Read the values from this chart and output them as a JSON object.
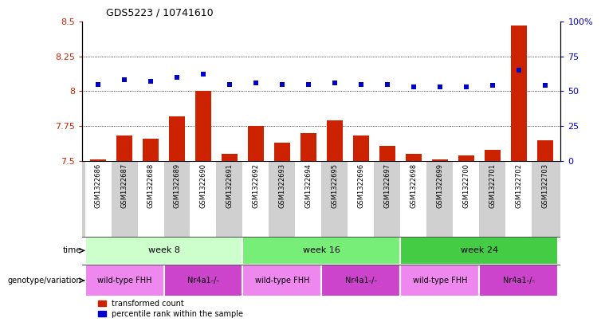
{
  "title": "GDS5223 / 10741610",
  "samples": [
    "GSM1322686",
    "GSM1322687",
    "GSM1322688",
    "GSM1322689",
    "GSM1322690",
    "GSM1322691",
    "GSM1322692",
    "GSM1322693",
    "GSM1322694",
    "GSM1322695",
    "GSM1322696",
    "GSM1322697",
    "GSM1322698",
    "GSM1322699",
    "GSM1322700",
    "GSM1322701",
    "GSM1322702",
    "GSM1322703"
  ],
  "red_values": [
    7.51,
    7.68,
    7.66,
    7.82,
    8.0,
    7.55,
    7.75,
    7.63,
    7.7,
    7.79,
    7.68,
    7.61,
    7.55,
    7.51,
    7.54,
    7.58,
    8.47,
    7.65
  ],
  "blue_values": [
    55,
    58,
    57,
    60,
    62,
    55,
    56,
    55,
    55,
    56,
    55,
    55,
    53,
    53,
    53,
    54,
    65,
    54
  ],
  "ylim_left": [
    7.5,
    8.5
  ],
  "ylim_right": [
    0,
    100
  ],
  "yticks_left": [
    7.5,
    7.75,
    8.0,
    8.25,
    8.5
  ],
  "ytick_labels_left": [
    "7.5",
    "7.75",
    "8",
    "8.25",
    "8.5"
  ],
  "ytick_labels_right": [
    "0",
    "25",
    "50",
    "75",
    "100%"
  ],
  "bar_color": "#cc2200",
  "dot_color": "#0000cc",
  "sample_bg_color": "#d0d0d0",
  "time_groups": [
    {
      "label": "week 8",
      "start": 0,
      "end": 5,
      "color": "#ccffcc"
    },
    {
      "label": "week 16",
      "start": 6,
      "end": 11,
      "color": "#77ee77"
    },
    {
      "label": "week 24",
      "start": 12,
      "end": 17,
      "color": "#44cc44"
    }
  ],
  "genotype_groups": [
    {
      "label": "wild-type FHH",
      "start": 0,
      "end": 2,
      "color": "#ee88ee"
    },
    {
      "label": "Nr4a1-/-",
      "start": 3,
      "end": 5,
      "color": "#cc44cc"
    },
    {
      "label": "wild-type FHH",
      "start": 6,
      "end": 8,
      "color": "#ee88ee"
    },
    {
      "label": "Nr4a1-/-",
      "start": 9,
      "end": 11,
      "color": "#cc44cc"
    },
    {
      "label": "wild-type FHH",
      "start": 12,
      "end": 14,
      "color": "#ee88ee"
    },
    {
      "label": "Nr4a1-/-",
      "start": 15,
      "end": 17,
      "color": "#cc44cc"
    }
  ],
  "legend_labels": [
    "transformed count",
    "percentile rank within the sample"
  ],
  "left_axis_color": "#cc2200",
  "right_axis_color": "#0000cc",
  "time_label": "time",
  "geno_label": "genotype/variation",
  "gridline_vals": [
    7.75,
    8.0,
    8.25
  ]
}
